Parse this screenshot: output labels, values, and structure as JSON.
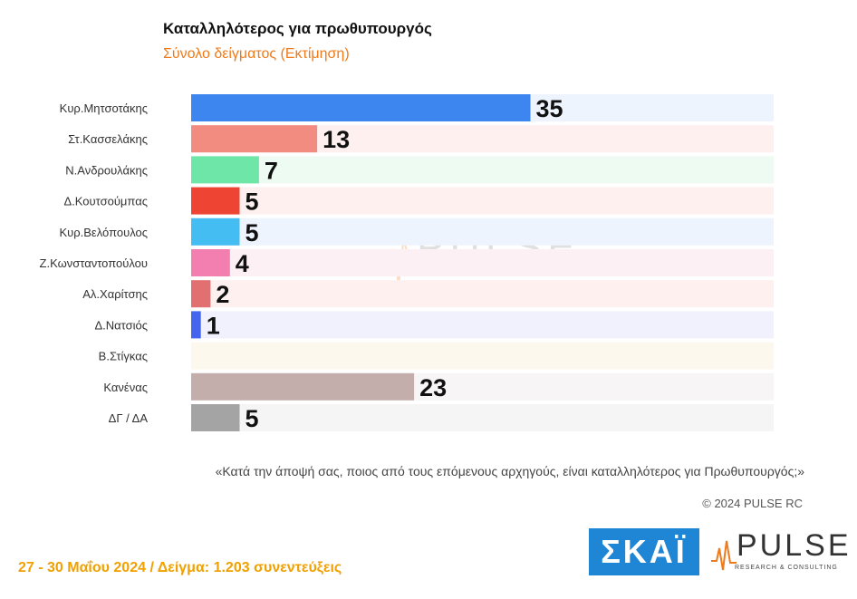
{
  "title": "Καταλληλότερος για πρωθυπουργός",
  "subtitle": "Σύνολο δείγματος   (Εκτίμηση)",
  "note": "«Κατά την άποψή σας, ποιος από τους επόμενους αρχηγούς, είναι καταλληλότερος για Πρωθυπουργός;»",
  "copyright": "© 2024 PULSE RC",
  "footer": "27 - 30  Μαΐου 2024  /  Δείγμα:  1.203 συνεντεύξεις",
  "logos": {
    "skai": "ΣΚΑΪ",
    "pulse": "PULSE",
    "pulse_sub": "RESEARCH & CONSULTING"
  },
  "chart_data": {
    "type": "bar",
    "orientation": "horizontal",
    "categories": [
      "Κυρ.Μητσοτάκης",
      "Στ.Κασσελάκης",
      "Ν.Ανδρουλάκης",
      "Δ.Κουτσούμπας",
      "Κυρ.Βελόπουλος",
      "Ζ.Κωνσταντοπούλου",
      "Αλ.Χαρίτσης",
      "Δ.Νατσιός",
      "Β.Στίγκας",
      "Κανένας",
      "ΔΓ / ΔΑ"
    ],
    "values": [
      35,
      13,
      7,
      5,
      5,
      4,
      2,
      1,
      null,
      23,
      5
    ],
    "labels": [
      "35",
      "13",
      "7",
      "5",
      "5",
      "4",
      "2",
      "1",
      "",
      "23",
      "5"
    ],
    "bar_colors": [
      "#3d86f0",
      "#f28b80",
      "#6ee6a8",
      "#ee4433",
      "#44bdf2",
      "#f27fb0",
      "#e37070",
      "#4466ee",
      "#f6e7c4",
      "#c4aeac",
      "#a4a4a4"
    ],
    "row_colors": [
      "#eef4fd",
      "#fdf0ef",
      "#eefbf3",
      "#fdf0ef",
      "#eef4fd",
      "#fdf0f4",
      "#fdf0ef",
      "#f0f1fd",
      "#fdf8ee",
      "#f7f5f5",
      "#f5f5f5"
    ],
    "xlim": [
      0,
      60
    ],
    "grid": false,
    "legend": "none"
  }
}
